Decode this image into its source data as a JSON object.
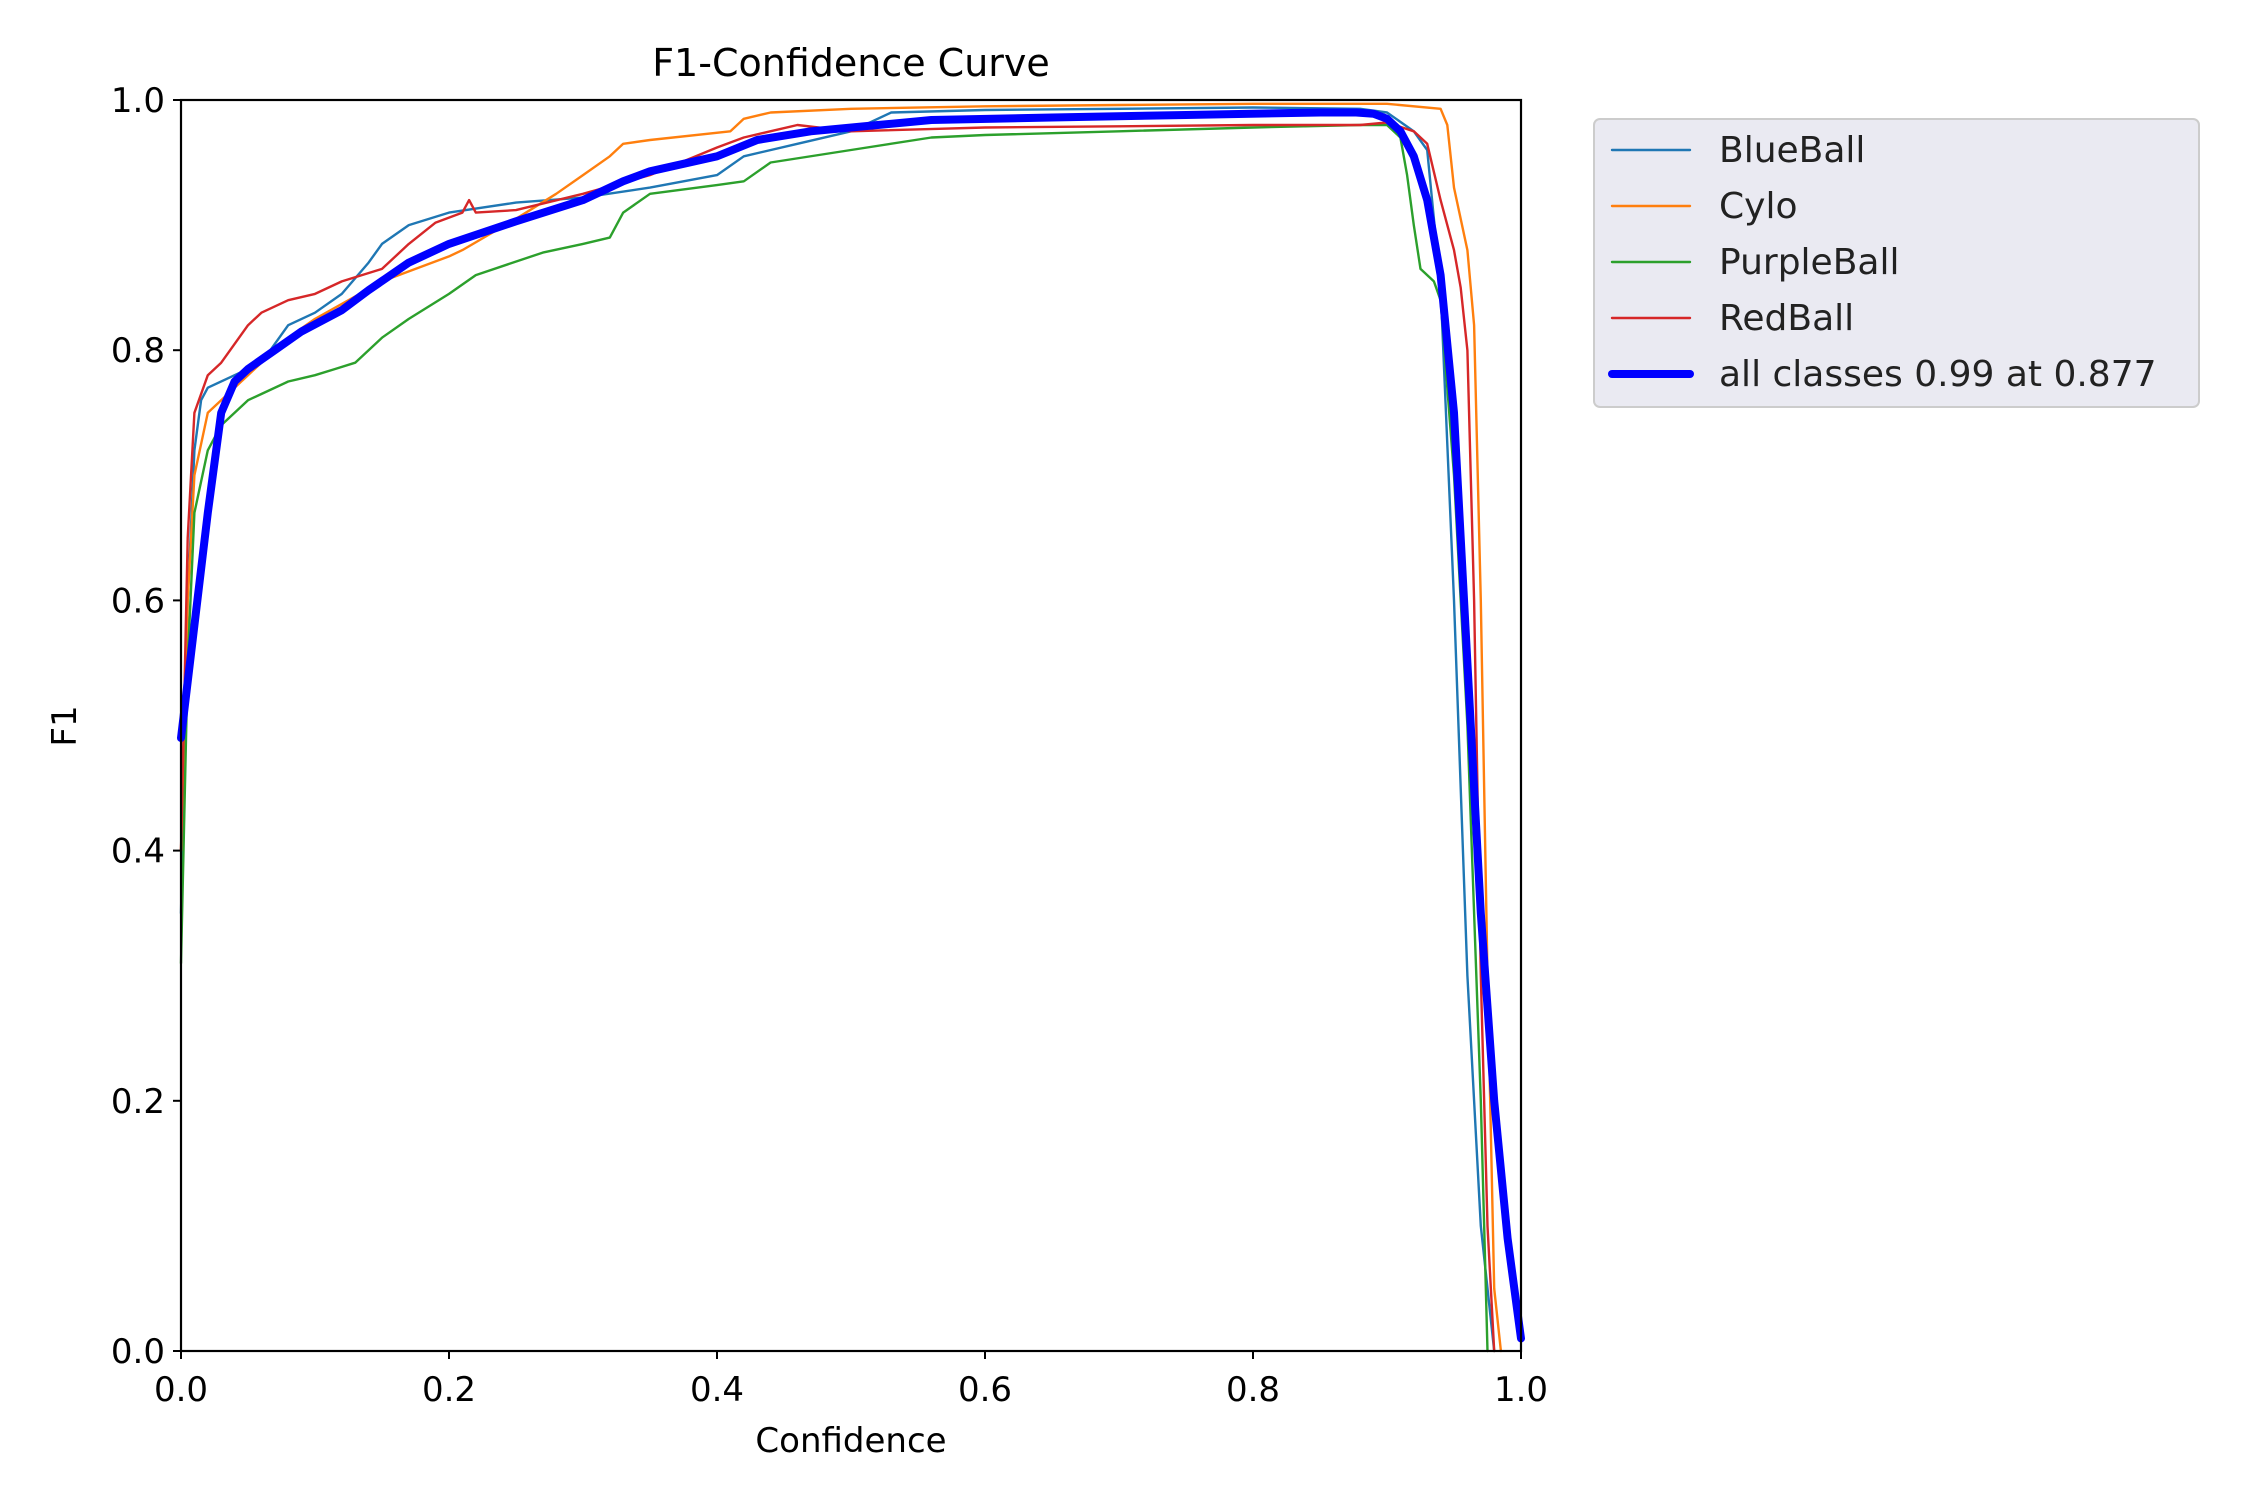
{
  "chart_data": {
    "type": "line",
    "title": "F1-Confidence Curve",
    "xlabel": "Confidence",
    "ylabel": "F1",
    "xlim": [
      0,
      1
    ],
    "ylim": [
      0,
      1
    ],
    "xticks": [
      "0.0",
      "0.2",
      "0.4",
      "0.6",
      "0.8",
      "1.0"
    ],
    "yticks": [
      "0.0",
      "0.2",
      "0.4",
      "0.6",
      "0.8",
      "1.0"
    ],
    "grid": false,
    "legend_position": "outside-upper-right",
    "series": [
      {
        "name": "BlueBall",
        "color": "#1f77b4",
        "width": "thin",
        "points": [
          [
            0.0,
            0.35
          ],
          [
            0.005,
            0.6
          ],
          [
            0.01,
            0.72
          ],
          [
            0.015,
            0.76
          ],
          [
            0.02,
            0.77
          ],
          [
            0.04,
            0.78
          ],
          [
            0.06,
            0.79
          ],
          [
            0.08,
            0.82
          ],
          [
            0.1,
            0.83
          ],
          [
            0.12,
            0.845
          ],
          [
            0.14,
            0.87
          ],
          [
            0.15,
            0.885
          ],
          [
            0.17,
            0.9
          ],
          [
            0.2,
            0.91
          ],
          [
            0.25,
            0.918
          ],
          [
            0.3,
            0.922
          ],
          [
            0.35,
            0.93
          ],
          [
            0.4,
            0.94
          ],
          [
            0.42,
            0.955
          ],
          [
            0.46,
            0.965
          ],
          [
            0.5,
            0.975
          ],
          [
            0.53,
            0.99
          ],
          [
            0.6,
            0.992
          ],
          [
            0.7,
            0.993
          ],
          [
            0.8,
            0.994
          ],
          [
            0.88,
            0.993
          ],
          [
            0.9,
            0.99
          ],
          [
            0.92,
            0.975
          ],
          [
            0.93,
            0.96
          ],
          [
            0.94,
            0.85
          ],
          [
            0.95,
            0.6
          ],
          [
            0.96,
            0.3
          ],
          [
            0.97,
            0.1
          ],
          [
            0.98,
            0.0
          ]
        ]
      },
      {
        "name": "Cylo",
        "color": "#ff7f0e",
        "width": "thin",
        "points": [
          [
            0.0,
            0.4
          ],
          [
            0.005,
            0.6
          ],
          [
            0.01,
            0.7
          ],
          [
            0.02,
            0.75
          ],
          [
            0.05,
            0.78
          ],
          [
            0.08,
            0.81
          ],
          [
            0.1,
            0.825
          ],
          [
            0.15,
            0.855
          ],
          [
            0.2,
            0.875
          ],
          [
            0.21,
            0.88
          ],
          [
            0.25,
            0.905
          ],
          [
            0.28,
            0.925
          ],
          [
            0.3,
            0.94
          ],
          [
            0.32,
            0.955
          ],
          [
            0.33,
            0.965
          ],
          [
            0.35,
            0.968
          ],
          [
            0.41,
            0.975
          ],
          [
            0.42,
            0.985
          ],
          [
            0.44,
            0.99
          ],
          [
            0.5,
            0.993
          ],
          [
            0.6,
            0.995
          ],
          [
            0.7,
            0.996
          ],
          [
            0.8,
            0.997
          ],
          [
            0.9,
            0.997
          ],
          [
            0.94,
            0.993
          ],
          [
            0.945,
            0.98
          ],
          [
            0.95,
            0.93
          ],
          [
            0.96,
            0.88
          ],
          [
            0.965,
            0.82
          ],
          [
            0.97,
            0.6
          ],
          [
            0.975,
            0.3
          ],
          [
            0.98,
            0.05
          ],
          [
            0.985,
            0.0
          ]
        ]
      },
      {
        "name": "PurpleBall",
        "color": "#2ca02c",
        "width": "thin",
        "points": [
          [
            0.0,
            0.31
          ],
          [
            0.005,
            0.55
          ],
          [
            0.01,
            0.67
          ],
          [
            0.02,
            0.72
          ],
          [
            0.03,
            0.74
          ],
          [
            0.04,
            0.75
          ],
          [
            0.05,
            0.76
          ],
          [
            0.06,
            0.765
          ],
          [
            0.08,
            0.775
          ],
          [
            0.1,
            0.78
          ],
          [
            0.115,
            0.785
          ],
          [
            0.13,
            0.79
          ],
          [
            0.15,
            0.81
          ],
          [
            0.17,
            0.825
          ],
          [
            0.2,
            0.845
          ],
          [
            0.22,
            0.86
          ],
          [
            0.27,
            0.878
          ],
          [
            0.3,
            0.885
          ],
          [
            0.32,
            0.89
          ],
          [
            0.33,
            0.91
          ],
          [
            0.35,
            0.925
          ],
          [
            0.4,
            0.932
          ],
          [
            0.42,
            0.935
          ],
          [
            0.44,
            0.95
          ],
          [
            0.5,
            0.96
          ],
          [
            0.56,
            0.97
          ],
          [
            0.6,
            0.972
          ],
          [
            0.7,
            0.975
          ],
          [
            0.8,
            0.978
          ],
          [
            0.88,
            0.98
          ],
          [
            0.9,
            0.98
          ],
          [
            0.91,
            0.97
          ],
          [
            0.915,
            0.94
          ],
          [
            0.92,
            0.9
          ],
          [
            0.925,
            0.865
          ],
          [
            0.935,
            0.855
          ],
          [
            0.94,
            0.84
          ],
          [
            0.95,
            0.7
          ],
          [
            0.96,
            0.5
          ],
          [
            0.97,
            0.2
          ],
          [
            0.975,
            0.0
          ]
        ]
      },
      {
        "name": "RedBall",
        "color": "#d62728",
        "width": "thin",
        "points": [
          [
            0.0,
            0.4
          ],
          [
            0.005,
            0.65
          ],
          [
            0.01,
            0.75
          ],
          [
            0.02,
            0.78
          ],
          [
            0.03,
            0.79
          ],
          [
            0.04,
            0.805
          ],
          [
            0.05,
            0.82
          ],
          [
            0.06,
            0.83
          ],
          [
            0.08,
            0.84
          ],
          [
            0.1,
            0.845
          ],
          [
            0.12,
            0.855
          ],
          [
            0.15,
            0.865
          ],
          [
            0.17,
            0.885
          ],
          [
            0.19,
            0.902
          ],
          [
            0.21,
            0.91
          ],
          [
            0.215,
            0.92
          ],
          [
            0.22,
            0.91
          ],
          [
            0.25,
            0.912
          ],
          [
            0.3,
            0.925
          ],
          [
            0.35,
            0.94
          ],
          [
            0.4,
            0.962
          ],
          [
            0.42,
            0.97
          ],
          [
            0.46,
            0.98
          ],
          [
            0.5,
            0.975
          ],
          [
            0.6,
            0.978
          ],
          [
            0.7,
            0.979
          ],
          [
            0.8,
            0.98
          ],
          [
            0.88,
            0.98
          ],
          [
            0.9,
            0.982
          ],
          [
            0.92,
            0.975
          ],
          [
            0.93,
            0.965
          ],
          [
            0.94,
            0.92
          ],
          [
            0.95,
            0.88
          ],
          [
            0.955,
            0.85
          ],
          [
            0.96,
            0.8
          ],
          [
            0.965,
            0.6
          ],
          [
            0.97,
            0.3
          ],
          [
            0.975,
            0.1
          ],
          [
            0.98,
            0.0
          ]
        ]
      },
      {
        "name": "all classes 0.99 at 0.877",
        "color": "#0000ff",
        "width": "thick",
        "points": [
          [
            0.0,
            0.49
          ],
          [
            0.01,
            0.58
          ],
          [
            0.02,
            0.67
          ],
          [
            0.03,
            0.75
          ],
          [
            0.04,
            0.775
          ],
          [
            0.05,
            0.785
          ],
          [
            0.07,
            0.8
          ],
          [
            0.09,
            0.815
          ],
          [
            0.12,
            0.832
          ],
          [
            0.14,
            0.848
          ],
          [
            0.17,
            0.87
          ],
          [
            0.2,
            0.885
          ],
          [
            0.25,
            0.903
          ],
          [
            0.3,
            0.92
          ],
          [
            0.33,
            0.935
          ],
          [
            0.35,
            0.943
          ],
          [
            0.4,
            0.955
          ],
          [
            0.43,
            0.968
          ],
          [
            0.47,
            0.975
          ],
          [
            0.52,
            0.98
          ],
          [
            0.56,
            0.984
          ],
          [
            0.65,
            0.986
          ],
          [
            0.75,
            0.988
          ],
          [
            0.85,
            0.99
          ],
          [
            0.877,
            0.99
          ],
          [
            0.89,
            0.989
          ],
          [
            0.9,
            0.985
          ],
          [
            0.91,
            0.975
          ],
          [
            0.92,
            0.955
          ],
          [
            0.93,
            0.92
          ],
          [
            0.94,
            0.86
          ],
          [
            0.95,
            0.75
          ],
          [
            0.96,
            0.55
          ],
          [
            0.97,
            0.35
          ],
          [
            0.98,
            0.2
          ],
          [
            0.99,
            0.09
          ],
          [
            1.0,
            0.01
          ]
        ]
      }
    ]
  }
}
